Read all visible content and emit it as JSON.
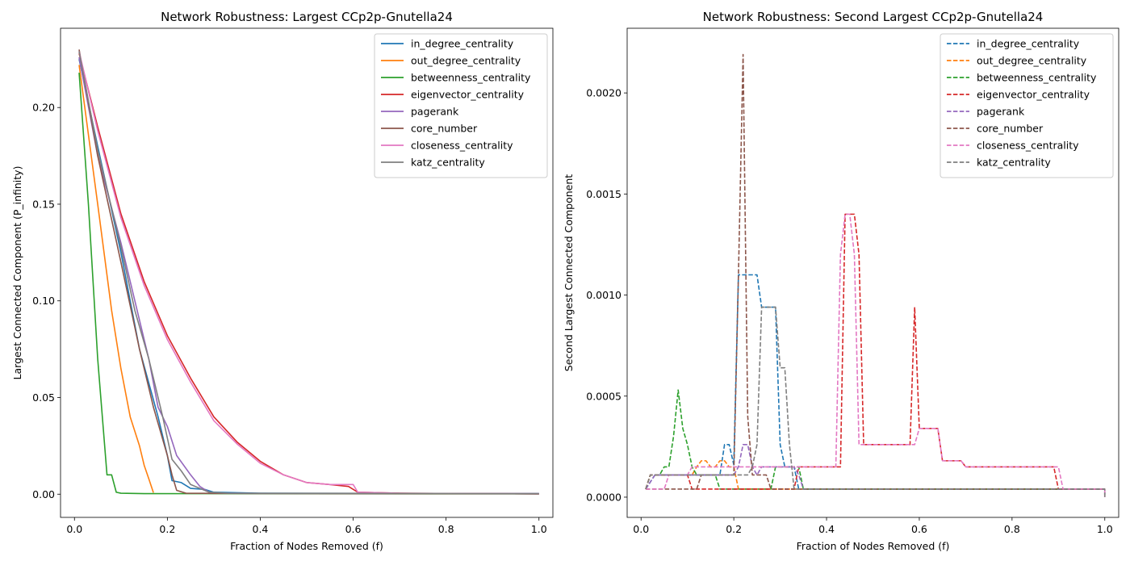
{
  "chart_data": [
    {
      "type": "line",
      "title": "Network Robustness: Largest CCp2p-Gnutella24",
      "xlabel": "Fraction of Nodes Removed (f)",
      "ylabel": "Largest Connected Component (P_infinity)",
      "xlim": [
        -0.03,
        1.03
      ],
      "ylim": [
        -0.012,
        0.241
      ],
      "xticks": [
        0.0,
        0.2,
        0.4,
        0.6,
        0.8,
        1.0
      ],
      "xtick_labels": [
        "0.0",
        "0.2",
        "0.4",
        "0.6",
        "0.8",
        "1.0"
      ],
      "yticks": [
        0.0,
        0.05,
        0.1,
        0.15,
        0.2
      ],
      "ytick_labels": [
        "0.00",
        "0.05",
        "0.10",
        "0.15",
        "0.20"
      ],
      "legend_position": "top-right",
      "line_style": "solid",
      "series": [
        {
          "name": "in_degree_centrality",
          "color": "#1f77b4",
          "x": [
            0.01,
            0.05,
            0.1,
            0.14,
            0.18,
            0.2,
            0.21,
            0.23,
            0.25,
            0.28,
            0.3,
            0.4,
            1.0
          ],
          "y": [
            0.225,
            0.18,
            0.125,
            0.075,
            0.04,
            0.02,
            0.007,
            0.006,
            0.003,
            0.0025,
            0.001,
            0.0005,
            0.0003
          ]
        },
        {
          "name": "out_degree_centrality",
          "color": "#ff7f0e",
          "x": [
            0.01,
            0.05,
            0.08,
            0.1,
            0.12,
            0.14,
            0.15,
            0.16,
            0.17
          ],
          "y": [
            0.222,
            0.15,
            0.095,
            0.065,
            0.04,
            0.025,
            0.015,
            0.008,
            0.0008
          ]
        },
        {
          "name": "betweenness_centrality",
          "color": "#2ca02c",
          "x": [
            0.01,
            0.03,
            0.05,
            0.07,
            0.08,
            0.09,
            0.1,
            0.15,
            1.0
          ],
          "y": [
            0.218,
            0.15,
            0.07,
            0.01,
            0.01,
            0.001,
            0.0005,
            0.0003,
            0.0001
          ]
        },
        {
          "name": "eigenvector_centrality",
          "color": "#d62728",
          "x": [
            0.01,
            0.05,
            0.1,
            0.15,
            0.2,
            0.25,
            0.3,
            0.35,
            0.4,
            0.45,
            0.5,
            0.55,
            0.59,
            0.61,
            0.7,
            1.0
          ],
          "y": [
            0.228,
            0.19,
            0.145,
            0.11,
            0.082,
            0.06,
            0.04,
            0.027,
            0.017,
            0.01,
            0.006,
            0.005,
            0.004,
            0.001,
            0.0005,
            0.0002
          ]
        },
        {
          "name": "pagerank",
          "color": "#9467bd",
          "x": [
            0.01,
            0.05,
            0.1,
            0.13,
            0.16,
            0.18,
            0.2,
            0.22,
            0.25,
            0.27,
            0.29,
            0.3,
            0.4,
            1.0
          ],
          "y": [
            0.226,
            0.175,
            0.13,
            0.1,
            0.07,
            0.045,
            0.035,
            0.02,
            0.01,
            0.004,
            0.001,
            0.0005,
            0.0004,
            0.0003
          ]
        },
        {
          "name": "core_number",
          "color": "#8c564b",
          "x": [
            0.01,
            0.05,
            0.1,
            0.14,
            0.17,
            0.2,
            0.21,
            0.22,
            0.24,
            0.3,
            1.0
          ],
          "y": [
            0.23,
            0.175,
            0.12,
            0.075,
            0.045,
            0.02,
            0.01,
            0.002,
            0.0005,
            0.0004,
            0.0002
          ]
        },
        {
          "name": "closeness_centrality",
          "color": "#e377c2",
          "x": [
            0.01,
            0.05,
            0.1,
            0.15,
            0.2,
            0.25,
            0.3,
            0.35,
            0.4,
            0.45,
            0.5,
            0.55,
            0.6,
            0.61,
            0.7,
            1.0
          ],
          "y": [
            0.229,
            0.188,
            0.143,
            0.108,
            0.08,
            0.058,
            0.038,
            0.026,
            0.016,
            0.01,
            0.006,
            0.005,
            0.005,
            0.001,
            0.0005,
            0.0002
          ]
        },
        {
          "name": "katz_centrality",
          "color": "#7f7f7f",
          "x": [
            0.01,
            0.05,
            0.1,
            0.13,
            0.16,
            0.19,
            0.21,
            0.23,
            0.25,
            0.27,
            0.29,
            0.33,
            1.0
          ],
          "y": [
            0.229,
            0.178,
            0.128,
            0.095,
            0.07,
            0.04,
            0.018,
            0.012,
            0.005,
            0.003,
            0.001,
            0.0005,
            0.0003
          ]
        }
      ]
    },
    {
      "type": "line",
      "title": "Network Robustness: Second Largest CCp2p-Gnutella24",
      "xlabel": "Fraction of Nodes Removed (f)",
      "ylabel": "Second Largest Connected Component",
      "xlim": [
        -0.03,
        1.03
      ],
      "ylim": [
        -0.0001,
        0.00232
      ],
      "xticks": [
        0.0,
        0.2,
        0.4,
        0.6,
        0.8,
        1.0
      ],
      "xtick_labels": [
        "0.0",
        "0.2",
        "0.4",
        "0.6",
        "0.8",
        "1.0"
      ],
      "yticks": [
        0.0,
        0.0005,
        0.001,
        0.0015,
        0.002
      ],
      "ytick_labels": [
        "0.0000",
        "0.0005",
        "0.0010",
        "0.0015",
        "0.0020"
      ],
      "legend_position": "top-right",
      "line_style": "dashed",
      "series": [
        {
          "name": "in_degree_centrality",
          "color": "#1f77b4",
          "x": [
            0.01,
            0.03,
            0.1,
            0.17,
            0.18,
            0.19,
            0.2,
            0.21,
            0.22,
            0.25,
            0.26,
            0.27,
            0.28,
            0.29,
            0.3,
            0.31,
            0.33,
            0.34,
            1.0,
            1.0
          ],
          "y": [
            4e-05,
            0.00011,
            0.00011,
            0.00011,
            0.00026,
            0.00026,
            0.00016,
            0.0011,
            0.0011,
            0.0011,
            0.00094,
            0.00094,
            0.00094,
            0.00094,
            0.00026,
            0.00015,
            0.00015,
            4e-05,
            4e-05,
            0.0
          ]
        },
        {
          "name": "out_degree_centrality",
          "color": "#ff7f0e",
          "x": [
            0.01,
            0.02,
            0.1,
            0.11,
            0.12,
            0.13,
            0.14,
            0.15,
            0.16,
            0.17,
            0.18,
            0.19,
            0.2,
            0.21,
            1.0
          ],
          "y": [
            4e-05,
            0.00011,
            0.00011,
            0.00011,
            0.00015,
            0.00018,
            0.00018,
            0.00015,
            0.00015,
            0.00018,
            0.00018,
            0.00015,
            0.00015,
            4e-05,
            4e-05
          ]
        },
        {
          "name": "betweenness_centrality",
          "color": "#2ca02c",
          "x": [
            0.01,
            0.02,
            0.03,
            0.04,
            0.05,
            0.06,
            0.07,
            0.08,
            0.09,
            0.1,
            0.11,
            0.12,
            0.16,
            0.17,
            0.28,
            0.29,
            0.34,
            0.35,
            1.0
          ],
          "y": [
            4e-05,
            0.00011,
            0.00011,
            0.00011,
            0.00015,
            0.00015,
            0.0003,
            0.00053,
            0.00034,
            0.00026,
            0.00015,
            0.00011,
            0.00011,
            4e-05,
            4e-05,
            0.00015,
            0.00015,
            4e-05,
            4e-05
          ]
        },
        {
          "name": "eigenvector_centrality",
          "color": "#d62728",
          "x": [
            0.01,
            0.02,
            0.1,
            0.11,
            0.33,
            0.34,
            0.43,
            0.44,
            0.45,
            0.46,
            0.47,
            0.48,
            0.58,
            0.59,
            0.6,
            0.64,
            0.65,
            0.69,
            0.7,
            0.89,
            0.9,
            1.0,
            1.0
          ],
          "y": [
            4e-05,
            0.00011,
            0.00011,
            4e-05,
            4e-05,
            0.00015,
            0.00015,
            0.0014,
            0.0014,
            0.0014,
            0.0012,
            0.00026,
            0.00026,
            0.00094,
            0.00034,
            0.00034,
            0.00018,
            0.00018,
            0.00015,
            0.00015,
            4e-05,
            4e-05,
            0.0
          ]
        },
        {
          "name": "pagerank",
          "color": "#9467bd",
          "x": [
            0.01,
            0.03,
            0.2,
            0.21,
            0.22,
            0.23,
            0.24,
            0.25,
            0.26,
            0.27,
            0.33,
            0.34,
            0.35,
            1.0
          ],
          "y": [
            4e-05,
            0.00011,
            0.00011,
            0.00015,
            0.00026,
            0.00026,
            0.00015,
            0.00011,
            0.00015,
            0.00015,
            0.00015,
            0.00011,
            4e-05,
            4e-05
          ]
        },
        {
          "name": "core_number",
          "color": "#8c564b",
          "x": [
            0.01,
            0.12,
            0.13,
            0.2,
            0.21,
            0.22,
            0.23,
            0.24,
            0.25,
            0.27,
            0.28,
            0.32,
            1.0
          ],
          "y": [
            4e-05,
            4e-05,
            0.00011,
            0.00011,
            0.0011,
            0.00219,
            0.0004,
            0.00011,
            0.00011,
            0.00011,
            4e-05,
            4e-05,
            4e-05
          ]
        },
        {
          "name": "closeness_centrality",
          "color": "#e377c2",
          "x": [
            0.01,
            0.02,
            0.05,
            0.06,
            0.1,
            0.11,
            0.3,
            0.31,
            0.42,
            0.43,
            0.44,
            0.45,
            0.46,
            0.47,
            0.59,
            0.6,
            0.64,
            0.65,
            0.69,
            0.7,
            0.9,
            0.91,
            1.0,
            1.0
          ],
          "y": [
            4e-05,
            4e-05,
            4e-05,
            0.00011,
            0.00011,
            0.00015,
            0.00015,
            0.00015,
            0.00015,
            0.0012,
            0.0014,
            0.0014,
            0.0012,
            0.00026,
            0.00026,
            0.00034,
            0.00034,
            0.00018,
            0.00018,
            0.00015,
            0.00015,
            4e-05,
            4e-05,
            0.0
          ]
        },
        {
          "name": "katz_centrality",
          "color": "#7f7f7f",
          "x": [
            0.01,
            0.02,
            0.22,
            0.23,
            0.24,
            0.25,
            0.26,
            0.27,
            0.28,
            0.29,
            0.3,
            0.31,
            0.32,
            0.33,
            1.0,
            1.0
          ],
          "y": [
            4e-05,
            0.00011,
            0.00011,
            0.00011,
            0.00015,
            0.00026,
            0.00094,
            0.00094,
            0.00094,
            0.00094,
            0.00064,
            0.00064,
            0.00026,
            4e-05,
            4e-05,
            0.0
          ]
        }
      ]
    }
  ]
}
